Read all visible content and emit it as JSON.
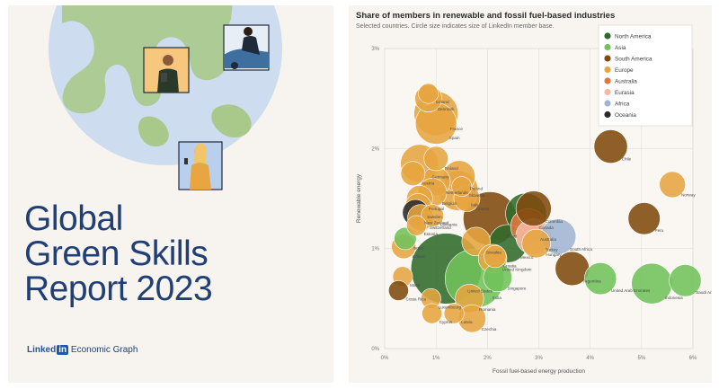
{
  "cover": {
    "title_lines": [
      "Global",
      "Green Skills",
      "Report 2023"
    ],
    "brand_linked": "Linked",
    "brand_in": "in",
    "brand_suffix": "Economic Graph"
  },
  "colors": {
    "cover_bg": "#f7f3ee",
    "globe": "#cddcef",
    "land": "#a9c98b",
    "title": "#1f3f76",
    "chart_bg": "#f8f4ef",
    "region_colors": {
      "North America": "#2f6b2a",
      "Asia": "#71c15a",
      "South America": "#7f4a0c",
      "Europe": "#e6a540",
      "Australia": "#e5753e",
      "Eurasia": "#f6b8a1",
      "Africa": "#9fb5d3",
      "Oceania": "#2b2b2b"
    }
  },
  "chart_data": {
    "type": "scatter",
    "title": "Share of members in renewable and fossil fuel-based industries",
    "subtitle": "Selected countries. Circle size indicates size of LinkedIn member base.",
    "xlabel": "Fossil fuel-based energy production",
    "ylabel": "Renewable energy",
    "xlim": [
      0,
      6
    ],
    "ylim": [
      0,
      3
    ],
    "x_ticks": [
      "0%",
      "1%",
      "2%",
      "3%",
      "4%",
      "5%",
      "6%"
    ],
    "y_ticks": [
      "0%",
      "1%",
      "2%",
      "3%"
    ],
    "grid": true,
    "legend": [
      "North America",
      "Asia",
      "South America",
      "Europe",
      "Australia",
      "Eurasia",
      "Africa",
      "Oceania"
    ],
    "legend_position": "top-right",
    "points": [
      {
        "label": "Iceland",
        "x": 0.85,
        "y": 2.55,
        "size": 0.6,
        "region": "Europe"
      },
      {
        "label": "Denmark",
        "x": 0.85,
        "y": 2.5,
        "size": 1.3,
        "region": "Europe"
      },
      {
        "label": "France",
        "x": 1.0,
        "y": 2.35,
        "size": 4.2,
        "region": "Europe"
      },
      {
        "label": "Spain",
        "x": 1.0,
        "y": 2.25,
        "size": 3.6,
        "region": "Europe"
      },
      {
        "label": "Chile",
        "x": 4.4,
        "y": 2.02,
        "size": 2.2,
        "region": "South America"
      },
      {
        "label": "Norway",
        "x": 5.6,
        "y": 1.64,
        "size": 1.2,
        "region": "Europe"
      },
      {
        "label": "Germany",
        "x": 0.68,
        "y": 1.85,
        "size": 3.0,
        "region": "Europe"
      },
      {
        "label": "Finland",
        "x": 1.0,
        "y": 1.9,
        "size": 1.0,
        "region": "Europe"
      },
      {
        "label": "Austria",
        "x": 0.55,
        "y": 1.75,
        "size": 1.0,
        "region": "Europe"
      },
      {
        "label": "Netherlands",
        "x": 1.0,
        "y": 1.67,
        "size": 1.5,
        "region": "Europe"
      },
      {
        "label": "Italy",
        "x": 1.43,
        "y": 1.58,
        "size": 3.4,
        "region": "Europe"
      },
      {
        "label": "Poland",
        "x": 1.45,
        "y": 1.72,
        "size": 2.0,
        "region": "Europe"
      },
      {
        "label": "Slovenia",
        "x": 1.5,
        "y": 1.62,
        "size": 0.6,
        "region": "Europe"
      },
      {
        "label": "Belgium",
        "x": 0.93,
        "y": 1.56,
        "size": 1.5,
        "region": "Europe"
      },
      {
        "label": "Greece",
        "x": 1.6,
        "y": 1.5,
        "size": 1.2,
        "region": "Europe"
      },
      {
        "label": "Brazil",
        "x": 2.05,
        "y": 1.3,
        "size": 6.5,
        "region": "South America"
      },
      {
        "label": "Portugal",
        "x": 0.68,
        "y": 1.5,
        "size": 1.2,
        "region": "Europe"
      },
      {
        "label": "Sweden",
        "x": 0.65,
        "y": 1.42,
        "size": 1.2,
        "region": "Europe"
      },
      {
        "label": "Canada",
        "x": 2.75,
        "y": 1.35,
        "size": 3.5,
        "region": "North America"
      },
      {
        "label": "Colombia",
        "x": 2.9,
        "y": 1.4,
        "size": 2.5,
        "region": "South America"
      },
      {
        "label": "New Zealand",
        "x": 0.6,
        "y": 1.36,
        "size": 1.2,
        "region": "Oceania"
      },
      {
        "label": "Switzerland",
        "x": 0.7,
        "y": 1.31,
        "size": 1.2,
        "region": "Europe"
      },
      {
        "label": "Lithuania",
        "x": 0.93,
        "y": 1.33,
        "size": 0.8,
        "region": "Europe"
      },
      {
        "label": "Estonia",
        "x": 0.62,
        "y": 1.23,
        "size": 0.6,
        "region": "Europe"
      },
      {
        "label": "Australia",
        "x": 2.8,
        "y": 1.22,
        "size": 2.6,
        "region": "Australia"
      },
      {
        "label": "South Africa",
        "x": 3.38,
        "y": 1.12,
        "size": 2.5,
        "region": "Africa"
      },
      {
        "label": "Peru",
        "x": 5.05,
        "y": 1.3,
        "size": 2.0,
        "region": "South America"
      },
      {
        "label": "Israel",
        "x": 0.4,
        "y": 1.1,
        "size": 0.8,
        "region": "Asia"
      },
      {
        "label": "Ireland",
        "x": 0.37,
        "y": 1.02,
        "size": 1.0,
        "region": "Europe"
      },
      {
        "label": "Malta",
        "x": 0.35,
        "y": 0.72,
        "size": 0.6,
        "region": "Europe"
      },
      {
        "label": "Slovakia",
        "x": 1.78,
        "y": 1.07,
        "size": 1.5,
        "region": "Europe"
      },
      {
        "label": "Mexico",
        "x": 2.4,
        "y": 1.05,
        "size": 3.0,
        "region": "North America"
      },
      {
        "label": "Turkey",
        "x": 2.9,
        "y": 1.12,
        "size": 2.6,
        "region": "Eurasia"
      },
      {
        "label": "Hungary",
        "x": 2.95,
        "y": 1.05,
        "size": 1.5,
        "region": "Europe"
      },
      {
        "label": "Croatia",
        "x": 2.15,
        "y": 0.92,
        "size": 0.8,
        "region": "Europe"
      },
      {
        "label": "United Kingdom",
        "x": 2.1,
        "y": 0.9,
        "size": 1.5,
        "region": "Europe"
      },
      {
        "label": "Argentina",
        "x": 3.65,
        "y": 0.8,
        "size": 2.3,
        "region": "South America"
      },
      {
        "label": "Saudi Arabia",
        "x": 5.85,
        "y": 0.68,
        "size": 2.0,
        "region": "Asia"
      },
      {
        "label": "Singapore",
        "x": 2.2,
        "y": 0.71,
        "size": 1.5,
        "region": "Asia"
      },
      {
        "label": "United Arab Emirates",
        "x": 4.2,
        "y": 0.7,
        "size": 2.0,
        "region": "Asia"
      },
      {
        "label": "Indonesia",
        "x": 5.2,
        "y": 0.65,
        "size": 3.5,
        "region": "Asia"
      },
      {
        "label": "United States",
        "x": 1.2,
        "y": 0.8,
        "size": 12.0,
        "region": "North America"
      },
      {
        "label": "India",
        "x": 1.75,
        "y": 0.7,
        "size": 8.0,
        "region": "Asia"
      },
      {
        "label": "Costa Rica",
        "x": 0.27,
        "y": 0.58,
        "size": 0.6,
        "region": "South America"
      },
      {
        "label": "Luxembourg",
        "x": 0.9,
        "y": 0.5,
        "size": 0.6,
        "region": "Europe"
      },
      {
        "label": "Cyprus",
        "x": 0.92,
        "y": 0.35,
        "size": 0.6,
        "region": "Europe"
      },
      {
        "label": "Romania",
        "x": 1.65,
        "y": 0.5,
        "size": 1.5,
        "region": "Europe"
      },
      {
        "label": "Latvia",
        "x": 1.35,
        "y": 0.35,
        "size": 0.6,
        "region": "Europe"
      },
      {
        "label": "Czechia",
        "x": 1.7,
        "y": 0.3,
        "size": 1.4,
        "region": "Europe"
      }
    ]
  }
}
